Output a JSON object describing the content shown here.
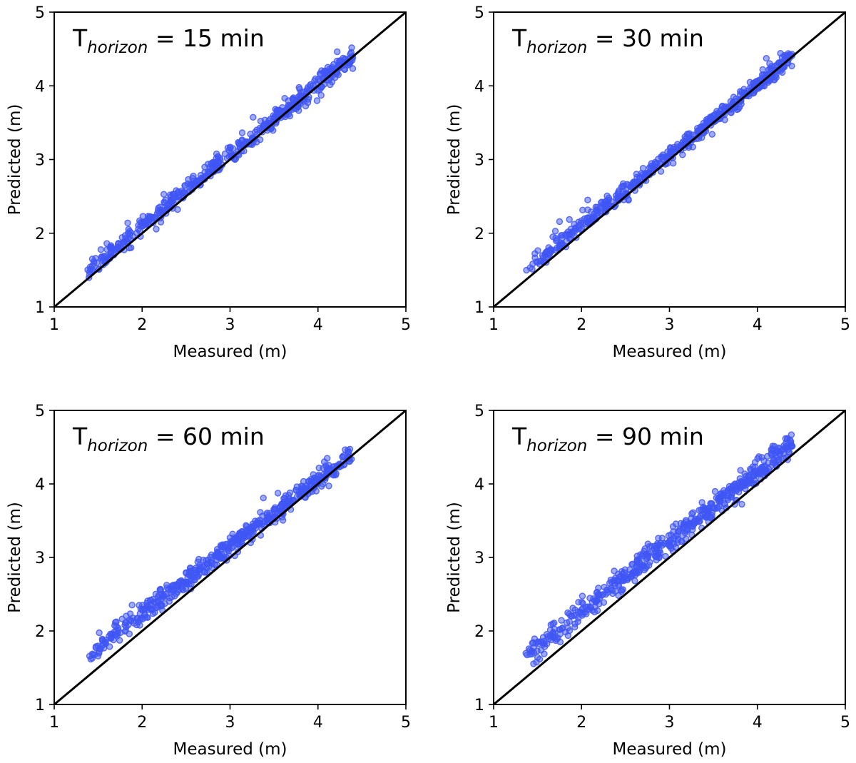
{
  "chart_data": [
    {
      "type": "scatter",
      "title_main": "T",
      "title_sub": "horizon",
      "title_rest": " = 15 min",
      "xlabel": "Measured (m)",
      "ylabel": "Predicted (m)",
      "xlim": [
        1,
        5
      ],
      "ylim": [
        1,
        5
      ],
      "xticks": [
        "1",
        "2",
        "3",
        "4",
        "5"
      ],
      "yticks": [
        "1",
        "2",
        "3",
        "4",
        "5"
      ],
      "grid": false,
      "reference_line": "y = x",
      "point_color": "#3f56f5",
      "x_range_observed": [
        1.25,
        4.4
      ],
      "predicted": {
        "slope": 0.96,
        "intercept": 0.18,
        "spread": 0.06
      }
    },
    {
      "type": "scatter",
      "title_main": "T",
      "title_sub": "horizon",
      "title_rest": " = 30 min",
      "xlabel": "Measured (m)",
      "ylabel": "Predicted (m)",
      "xlim": [
        1,
        5
      ],
      "ylim": [
        1,
        5
      ],
      "xticks": [
        "1",
        "2",
        "3",
        "4",
        "5"
      ],
      "yticks": [
        "1",
        "2",
        "3",
        "4",
        "5"
      ],
      "grid": false,
      "reference_line": "y = x",
      "point_color": "#3f56f5",
      "x_range_observed": [
        1.25,
        4.4
      ],
      "predicted": {
        "slope": 0.96,
        "intercept": 0.18,
        "spread": 0.06
      }
    },
    {
      "type": "scatter",
      "title_main": "T",
      "title_sub": "horizon",
      "title_rest": " = 60 min",
      "xlabel": "Measured (m)",
      "ylabel": "Predicted (m)",
      "xlim": [
        1,
        5
      ],
      "ylim": [
        1,
        5
      ],
      "xticks": [
        "1",
        "2",
        "3",
        "4",
        "5"
      ],
      "yticks": [
        "1",
        "2",
        "3",
        "4",
        "5"
      ],
      "grid": false,
      "reference_line": "y = x",
      "point_color": "#3f56f5",
      "x_range_observed": [
        1.25,
        4.4
      ],
      "predicted": {
        "slope": 0.91,
        "intercept": 0.42,
        "spread": 0.07
      }
    },
    {
      "type": "scatter",
      "title_main": "T",
      "title_sub": "horizon",
      "title_rest": " = 90 min",
      "xlabel": "Measured (m)",
      "ylabel": "Predicted (m)",
      "xlim": [
        1,
        5
      ],
      "ylim": [
        1,
        5
      ],
      "xticks": [
        "1",
        "2",
        "3",
        "4",
        "5"
      ],
      "yticks": [
        "1",
        "2",
        "3",
        "4",
        "5"
      ],
      "grid": false,
      "reference_line": "y = x",
      "point_color": "#3f56f5",
      "x_range_observed": [
        1.25,
        4.4
      ],
      "predicted": {
        "slope": 0.95,
        "intercept": 0.36,
        "spread": 0.08
      }
    }
  ]
}
